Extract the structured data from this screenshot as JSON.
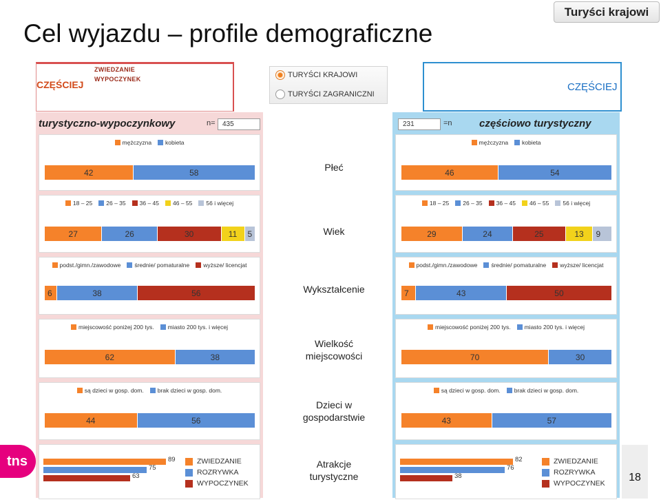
{
  "slide": {
    "title": "Cel wyjazdu – profile demograficzne",
    "corner_tag": "Turyści krajowi",
    "page_number": "18",
    "logo_text": "tns"
  },
  "top_left_box": {
    "mini1": "ZWIEDZANIE",
    "mini2": "WYPOCZYNEK",
    "label": "CZĘŚCIEJ"
  },
  "top_right_box": {
    "label": "CZĘŚCIEJ"
  },
  "radio": {
    "options": [
      {
        "label": "TURYŚCI KRAJOWI",
        "selected": true
      },
      {
        "label": "TURYŚCI ZAGRANICZNI",
        "selected": false
      }
    ]
  },
  "row_labels": {
    "plec": "Płeć",
    "wiek": "Wiek",
    "wyksztalcenie": "Wykształcenie",
    "wielkosc": [
      "Wielkość",
      "miejscowości"
    ],
    "dzieci": [
      "Dzieci w",
      "gospodarstwie"
    ],
    "atrakcje": [
      "Atrakcje",
      "turystyczne"
    ]
  },
  "colors": {
    "orange": "#f5822a",
    "blue": "#5b8fd6",
    "darkred": "#b5301e",
    "yellow": "#f2d21b",
    "gray": "#b8c4d8"
  },
  "chart_data": [
    {
      "panel": "left",
      "title": "turystyczno-wypoczynkowy",
      "n_label": "n=",
      "n_value": "435",
      "charts": {
        "plec": {
          "type": "bar",
          "legend": [
            "mężczyzna",
            "kobieta"
          ],
          "values": [
            42,
            58
          ]
        },
        "wiek": {
          "type": "bar",
          "legend": [
            "18 – 25",
            "26 – 35",
            "36 – 45",
            "46 – 55",
            "56 i więcej"
          ],
          "values": [
            27,
            26,
            30,
            11,
            5
          ]
        },
        "wyksztalcenie": {
          "type": "bar",
          "legend": [
            "podst./gimn./zawodowe",
            "średnie/ pomaturalne",
            "wyższe/ licencjat"
          ],
          "values": [
            6,
            38,
            56
          ]
        },
        "wielkosc": {
          "type": "bar",
          "legend": [
            "miejscowość poniżej 200 tys.",
            "miasto 200 tys. i więcej"
          ],
          "values": [
            62,
            38
          ]
        },
        "dzieci": {
          "type": "bar",
          "legend": [
            "są dzieci w gosp. dom.",
            "brak dzieci w gosp. dom."
          ],
          "values": [
            44,
            56
          ]
        },
        "atrakcje": {
          "type": "bar",
          "legend": [
            "ZWIEDZANIE",
            "ROZRYWKA",
            "WYPOCZYNEK"
          ],
          "values": [
            89,
            75,
            63
          ]
        }
      }
    },
    {
      "panel": "right",
      "title": "częściowo turystyczny",
      "n_label": "=n",
      "n_value": "231",
      "charts": {
        "plec": {
          "type": "bar",
          "legend": [
            "mężczyzna",
            "kobieta"
          ],
          "values": [
            46,
            54
          ]
        },
        "wiek": {
          "type": "bar",
          "legend": [
            "18 – 25",
            "26 – 35",
            "36 – 45",
            "46 – 55",
            "56 i więcej"
          ],
          "values": [
            29,
            24,
            25,
            13,
            9
          ]
        },
        "wyksztalcenie": {
          "type": "bar",
          "legend": [
            "podst./gimn./zawodowe",
            "średnie/ pomaturalne",
            "wyższe/ licencjat"
          ],
          "values": [
            7,
            43,
            50
          ]
        },
        "wielkosc": {
          "type": "bar",
          "legend": [
            "miejscowość poniżej 200 tys.",
            "miasto 200 tys. i więcej"
          ],
          "values": [
            70,
            30
          ]
        },
        "dzieci": {
          "type": "bar",
          "legend": [
            "są dzieci w gosp. dom.",
            "brak dzieci w gosp. dom."
          ],
          "values": [
            43,
            57
          ]
        },
        "atrakcje": {
          "type": "bar",
          "legend": [
            "ZWIEDZANIE",
            "ROZRYWKA",
            "WYPOCZYNEK"
          ],
          "values": [
            82,
            76,
            38
          ]
        }
      }
    }
  ]
}
